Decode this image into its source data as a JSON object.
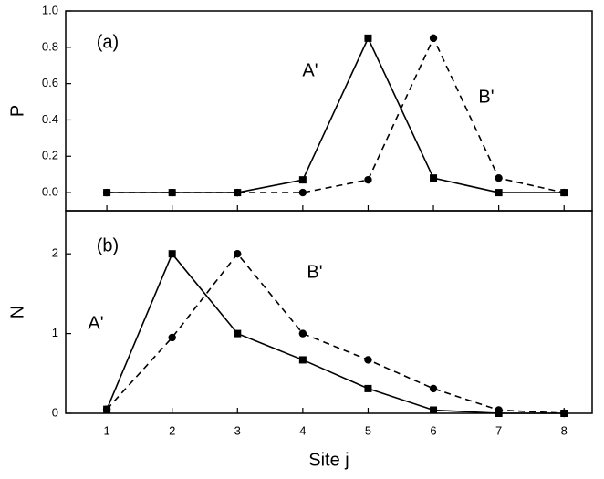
{
  "chart_data": [
    {
      "type": "line",
      "annotations": [
        "(a)"
      ],
      "ylabel": "P",
      "x": [
        1,
        2,
        3,
        4,
        5,
        6,
        7,
        8
      ],
      "series": [
        {
          "name": "A'",
          "color": "#000000",
          "marker": "square",
          "linestyle": "solid",
          "values": [
            0,
            0,
            0,
            0.07,
            0.85,
            0.08,
            0,
            0
          ]
        },
        {
          "name": "B'",
          "color": "#000000",
          "marker": "circle",
          "linestyle": "dashed",
          "values": [
            0,
            0,
            0,
            0,
            0.07,
            0.85,
            0.08,
            0
          ]
        }
      ],
      "xlim": [
        0.37,
        8.43
      ],
      "xticks": [
        1,
        2,
        3,
        4,
        5,
        6,
        7,
        8
      ],
      "ylim": [
        -0.1,
        1.0
      ],
      "yticks": [
        {
          "value": 0,
          "label": "0.0"
        },
        0.2,
        0.4,
        0.6,
        0.8,
        {
          "value": 1,
          "label": "1.0"
        }
      ]
    },
    {
      "type": "line",
      "annotations": [
        "(b)"
      ],
      "ylabel": "N",
      "xlabel": "Site j",
      "x": [
        1,
        2,
        3,
        4,
        5,
        6,
        7,
        8
      ],
      "series": [
        {
          "name": "A'",
          "color": "#000000",
          "marker": "square",
          "linestyle": "solid",
          "values": [
            0.05,
            2.0,
            1.0,
            0.67,
            0.31,
            0.04,
            0,
            0
          ]
        },
        {
          "name": "B'",
          "color": "#000000",
          "marker": "circle",
          "linestyle": "dashed",
          "values": [
            0.05,
            0.95,
            2.0,
            1.0,
            0.67,
            0.31,
            0.04,
            0
          ]
        }
      ],
      "xlim": [
        0.37,
        8.43
      ],
      "xticks": [
        1,
        2,
        3,
        4,
        5,
        6,
        7,
        8
      ],
      "xticklabels": true,
      "ylim": [
        0,
        2.54
      ],
      "yticks": [
        0,
        1,
        2
      ]
    }
  ]
}
